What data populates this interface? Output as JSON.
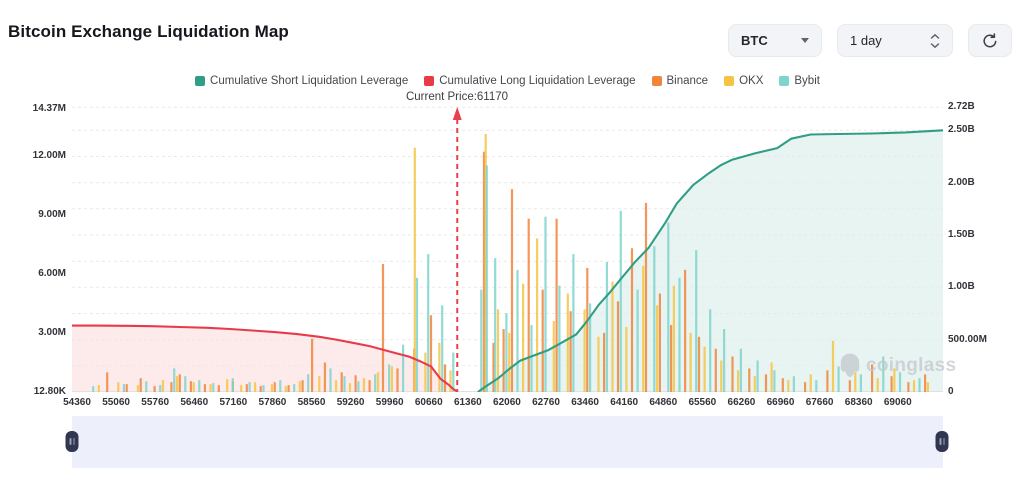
{
  "header": {
    "title": "Bitcoin Exchange Liquidation Map"
  },
  "controls": {
    "symbol": {
      "value": "BTC"
    },
    "interval": {
      "value": "1 day"
    }
  },
  "legend": {
    "items": [
      {
        "label": "Cumulative Short Liquidation Leverage",
        "color": "#2f9e85"
      },
      {
        "label": "Cumulative Long Liquidation Leverage",
        "color": "#ea3947"
      },
      {
        "label": "Binance",
        "color": "#f0853c"
      },
      {
        "label": "OKX",
        "color": "#f5c444"
      },
      {
        "label": "Bybit",
        "color": "#7fd4cd"
      }
    ]
  },
  "annotation": {
    "current_price_label": "Current Price:61170",
    "current_price": 61170
  },
  "watermark": {
    "text": "coinglass"
  },
  "chart_data": {
    "type": "composite",
    "title": "Bitcoin Exchange Liquidation Map",
    "current_price": 61170,
    "x_axis": {
      "min": 54270,
      "max": 69870,
      "ticks": [
        54360,
        55060,
        55760,
        56460,
        57160,
        57860,
        58560,
        59260,
        59960,
        60660,
        61360,
        62060,
        62760,
        63460,
        64160,
        64860,
        65560,
        66260,
        66960,
        67660,
        68360,
        69060
      ]
    },
    "left_axis": {
      "unit": "M",
      "plot_max": 14.57,
      "ticks": [
        {
          "label": "12.80K",
          "value": 0.0128
        },
        {
          "label": "3.00M",
          "value": 3
        },
        {
          "label": "6.00M",
          "value": 6
        },
        {
          "label": "9.00M",
          "value": 9
        },
        {
          "label": "12.00M",
          "value": 12
        },
        {
          "label": "14.37M",
          "value": 14.37
        }
      ]
    },
    "right_axis": {
      "unit": "B",
      "plot_max": 2.742,
      "ticks": [
        {
          "label": "0",
          "value": 0
        },
        {
          "label": "500.00M",
          "value": 0.5
        },
        {
          "label": "1.00B",
          "value": 1
        },
        {
          "label": "1.50B",
          "value": 1.5
        },
        {
          "label": "2.00B",
          "value": 2
        },
        {
          "label": "2.50B",
          "value": 2.5
        },
        {
          "label": "2.72B",
          "value": 2.72
        }
      ]
    },
    "gridlines_right_axis": [
      0.25,
      0.5,
      0.75,
      1,
      1.25,
      1.5,
      1.75,
      2,
      2.25,
      2.5,
      2.72
    ],
    "series": [
      {
        "name": "Cumulative Long Liquidation Leverage",
        "type": "line",
        "axis": "left",
        "color": "#e83b4a",
        "fill": "rgba(234,57,71,0.10)",
        "points": [
          [
            54270,
            3.37
          ],
          [
            54700,
            3.37
          ],
          [
            55200,
            3.36
          ],
          [
            55700,
            3.34
          ],
          [
            56200,
            3.3
          ],
          [
            56700,
            3.26
          ],
          [
            57100,
            3.2
          ],
          [
            57500,
            3.12
          ],
          [
            57900,
            3.04
          ],
          [
            58300,
            2.94
          ],
          [
            58700,
            2.8
          ],
          [
            59000,
            2.66
          ],
          [
            59300,
            2.5
          ],
          [
            59600,
            2.33
          ],
          [
            59900,
            2.1
          ],
          [
            60100,
            1.95
          ],
          [
            60300,
            1.8
          ],
          [
            60500,
            1.57
          ],
          [
            60700,
            1.3
          ],
          [
            60870,
            0.67
          ],
          [
            61000,
            0.4
          ],
          [
            61100,
            0.15
          ],
          [
            61170,
            0.02
          ]
        ]
      },
      {
        "name": "Cumulative Short Liquidation Leverage",
        "type": "line",
        "axis": "right",
        "color": "#2f9e85",
        "fill": "rgba(63,166,143,0.12)",
        "points": [
          [
            61540,
            0.0
          ],
          [
            61700,
            0.06
          ],
          [
            61900,
            0.13
          ],
          [
            62100,
            0.22
          ],
          [
            62300,
            0.3
          ],
          [
            62500,
            0.34
          ],
          [
            62800,
            0.4
          ],
          [
            63000,
            0.46
          ],
          [
            63300,
            0.55
          ],
          [
            63500,
            0.68
          ],
          [
            63700,
            0.83
          ],
          [
            63900,
            0.95
          ],
          [
            64100,
            1.08
          ],
          [
            64350,
            1.24
          ],
          [
            64600,
            1.38
          ],
          [
            64900,
            1.62
          ],
          [
            65100,
            1.8
          ],
          [
            65400,
            1.98
          ],
          [
            65650,
            2.08
          ],
          [
            65900,
            2.17
          ],
          [
            66100,
            2.22
          ],
          [
            66500,
            2.28
          ],
          [
            66900,
            2.33
          ],
          [
            67150,
            2.42
          ],
          [
            67500,
            2.46
          ],
          [
            68000,
            2.465
          ],
          [
            68600,
            2.47
          ],
          [
            69200,
            2.48
          ],
          [
            69870,
            2.5
          ]
        ]
      },
      {
        "name": "Binance",
        "type": "bar",
        "axis": "left",
        "color": "#f0853c",
        "bars": [
          [
            54900,
            1.0
          ],
          [
            55250,
            0.4
          ],
          [
            55500,
            0.7
          ],
          [
            55750,
            0.3
          ],
          [
            56050,
            0.5
          ],
          [
            56200,
            0.9
          ],
          [
            56400,
            0.55
          ],
          [
            56650,
            0.4
          ],
          [
            56900,
            0.35
          ],
          [
            57150,
            0.55
          ],
          [
            57400,
            0.4
          ],
          [
            57650,
            0.3
          ],
          [
            57900,
            0.5
          ],
          [
            58150,
            0.35
          ],
          [
            58400,
            0.6
          ],
          [
            58570,
            2.7
          ],
          [
            58800,
            1.5
          ],
          [
            59100,
            1.0
          ],
          [
            59350,
            0.85
          ],
          [
            59600,
            0.6
          ],
          [
            59840,
            6.5
          ],
          [
            60100,
            1.2
          ],
          [
            60400,
            2.2
          ],
          [
            60700,
            3.9
          ],
          [
            60950,
            1.4
          ],
          [
            61650,
            12.2
          ],
          [
            61820,
            2.5
          ],
          [
            62000,
            3.2
          ],
          [
            62150,
            10.3
          ],
          [
            62450,
            8.8
          ],
          [
            62700,
            5.2
          ],
          [
            62950,
            8.8
          ],
          [
            63200,
            4.1
          ],
          [
            63500,
            6.3
          ],
          [
            63800,
            3.0
          ],
          [
            64050,
            4.6
          ],
          [
            64300,
            7.3
          ],
          [
            64550,
            9.6
          ],
          [
            64800,
            5.0
          ],
          [
            65000,
            3.4
          ],
          [
            65250,
            6.2
          ],
          [
            65500,
            2.8
          ],
          [
            65800,
            2.2
          ],
          [
            66100,
            1.8
          ],
          [
            66400,
            1.2
          ],
          [
            66700,
            0.9
          ],
          [
            67000,
            0.7
          ],
          [
            67400,
            0.5
          ],
          [
            67800,
            1.1
          ],
          [
            68200,
            0.6
          ],
          [
            68600,
            1.4
          ],
          [
            68950,
            0.8
          ],
          [
            69250,
            0.5
          ],
          [
            69550,
            0.9
          ]
        ]
      },
      {
        "name": "OKX",
        "type": "bar",
        "axis": "left",
        "color": "#f5c444",
        "bars": [
          [
            54750,
            0.35
          ],
          [
            55100,
            0.5
          ],
          [
            55450,
            0.35
          ],
          [
            55900,
            0.6
          ],
          [
            56150,
            0.8
          ],
          [
            56450,
            0.5
          ],
          [
            56750,
            0.4
          ],
          [
            57050,
            0.65
          ],
          [
            57300,
            0.35
          ],
          [
            57550,
            0.5
          ],
          [
            57850,
            0.4
          ],
          [
            58100,
            0.3
          ],
          [
            58350,
            0.55
          ],
          [
            58700,
            0.8
          ],
          [
            59000,
            0.6
          ],
          [
            59250,
            0.45
          ],
          [
            59500,
            0.7
          ],
          [
            59750,
            1.0
          ],
          [
            60000,
            1.3
          ],
          [
            60410,
            12.4
          ],
          [
            60600,
            2.0
          ],
          [
            60850,
            2.5
          ],
          [
            61050,
            1.1
          ],
          [
            61680,
            13.1
          ],
          [
            61900,
            4.2
          ],
          [
            62100,
            3.0
          ],
          [
            62350,
            5.5
          ],
          [
            62600,
            7.8
          ],
          [
            62900,
            3.6
          ],
          [
            63150,
            5.0
          ],
          [
            63450,
            4.2
          ],
          [
            63700,
            2.8
          ],
          [
            63950,
            5.6
          ],
          [
            64200,
            3.3
          ],
          [
            64500,
            6.4
          ],
          [
            64750,
            4.4
          ],
          [
            65050,
            5.4
          ],
          [
            65350,
            3.0
          ],
          [
            65600,
            2.3
          ],
          [
            65900,
            1.6
          ],
          [
            66200,
            1.1
          ],
          [
            66500,
            0.8
          ],
          [
            66800,
            1.5
          ],
          [
            67100,
            0.6
          ],
          [
            67500,
            0.9
          ],
          [
            67900,
            2.6
          ],
          [
            68300,
            1.0
          ],
          [
            68700,
            0.7
          ],
          [
            69000,
            1.2
          ],
          [
            69350,
            0.6
          ],
          [
            69600,
            0.5
          ]
        ]
      },
      {
        "name": "Bybit",
        "type": "bar",
        "axis": "left",
        "color": "#7fd4cd",
        "bars": [
          [
            54650,
            0.3
          ],
          [
            55200,
            0.4
          ],
          [
            55600,
            0.55
          ],
          [
            55850,
            0.35
          ],
          [
            56100,
            1.2
          ],
          [
            56300,
            0.8
          ],
          [
            56550,
            0.6
          ],
          [
            56800,
            0.45
          ],
          [
            57150,
            0.7
          ],
          [
            57450,
            0.5
          ],
          [
            57700,
            0.35
          ],
          [
            58000,
            0.6
          ],
          [
            58250,
            0.4
          ],
          [
            58500,
            0.9
          ],
          [
            58900,
            1.2
          ],
          [
            59150,
            0.8
          ],
          [
            59400,
            0.55
          ],
          [
            59700,
            0.9
          ],
          [
            59950,
            1.4
          ],
          [
            60200,
            2.4
          ],
          [
            60450,
            5.8
          ],
          [
            60650,
            7.0
          ],
          [
            60900,
            4.4
          ],
          [
            61100,
            2.0
          ],
          [
            61600,
            5.2
          ],
          [
            61700,
            11.5
          ],
          [
            61850,
            6.8
          ],
          [
            62050,
            4.0
          ],
          [
            62250,
            6.2
          ],
          [
            62500,
            3.4
          ],
          [
            62750,
            8.9
          ],
          [
            63000,
            5.4
          ],
          [
            63250,
            7.0
          ],
          [
            63550,
            4.5
          ],
          [
            63850,
            6.6
          ],
          [
            64100,
            9.2
          ],
          [
            64400,
            5.2
          ],
          [
            64700,
            7.4
          ],
          [
            64950,
            8.6
          ],
          [
            65150,
            5.8
          ],
          [
            65450,
            7.2
          ],
          [
            65700,
            4.2
          ],
          [
            65950,
            3.2
          ],
          [
            66250,
            2.2
          ],
          [
            66550,
            1.6
          ],
          [
            66850,
            1.1
          ],
          [
            67200,
            0.8
          ],
          [
            67600,
            0.6
          ],
          [
            68000,
            1.3
          ],
          [
            68400,
            0.9
          ],
          [
            68800,
            1.8
          ],
          [
            69100,
            1.0
          ],
          [
            69450,
            0.7
          ]
        ]
      }
    ]
  }
}
